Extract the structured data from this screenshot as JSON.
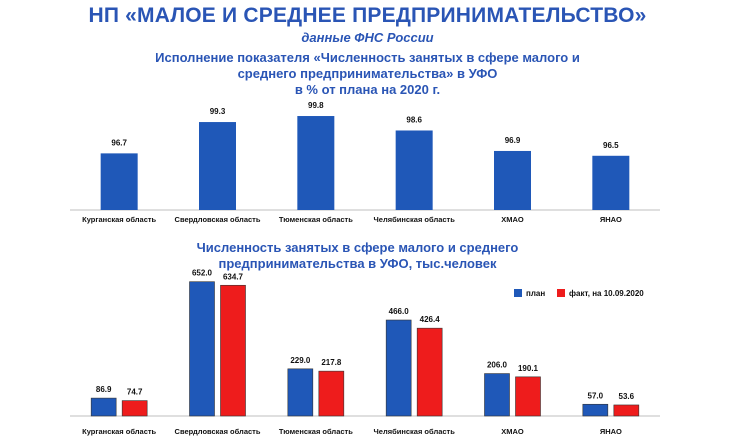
{
  "header": {
    "title": "НП «МАЛОЕ И СРЕДНЕЕ ПРЕДПРИНИМАТЕЛЬСТВО»",
    "subtitle": "данные ФНС России"
  },
  "chart_data": [
    {
      "type": "bar",
      "title_lines": [
        "Исполнение показателя «Численность занятых в сфере малого и",
        "среднего предпринимательства» в УФО",
        "в % от плана на 2020 г."
      ],
      "categories": [
        "Курганская область",
        "Свердловская область",
        "Тюменская область",
        "Челябинская область",
        "ХМАО",
        "ЯНАО"
      ],
      "values": [
        96.7,
        99.3,
        99.8,
        98.6,
        96.9,
        96.5
      ],
      "value_labels": [
        "96.7",
        "99.3",
        "99.8",
        "98.6",
        "96.9",
        "96.5"
      ],
      "ylim": [
        92,
        100.3
      ],
      "colors": [
        "#1f58b8"
      ],
      "grid": false
    },
    {
      "type": "bar",
      "title_lines": [
        "Численность занятых в сфере малого и среднего",
        "предпринимательства в УФО, тыс.человек"
      ],
      "categories": [
        "Курганская область",
        "Свердловская область",
        "Тюменская область",
        "Челябинская область",
        "ХМАО",
        "ЯНАО"
      ],
      "series": [
        {
          "name": "план",
          "values": [
            86.9,
            652.0,
            229.0,
            466.0,
            206.0,
            57.0
          ],
          "labels": [
            "86.9",
            "652.0",
            "229.0",
            "466.0",
            "206.0",
            "57.0"
          ],
          "color": "#1f58b8"
        },
        {
          "name": "факт, на 10.09.2020",
          "values": [
            74.7,
            634.7,
            217.8,
            426.4,
            190.1,
            53.6
          ],
          "labels": [
            "74.7",
            "634.7",
            "217.8",
            "426.4",
            "190.1",
            "53.6"
          ],
          "color": "#ee1c1c"
        }
      ],
      "ylim": [
        0,
        670
      ],
      "legend": "top-right",
      "grid": false
    }
  ]
}
